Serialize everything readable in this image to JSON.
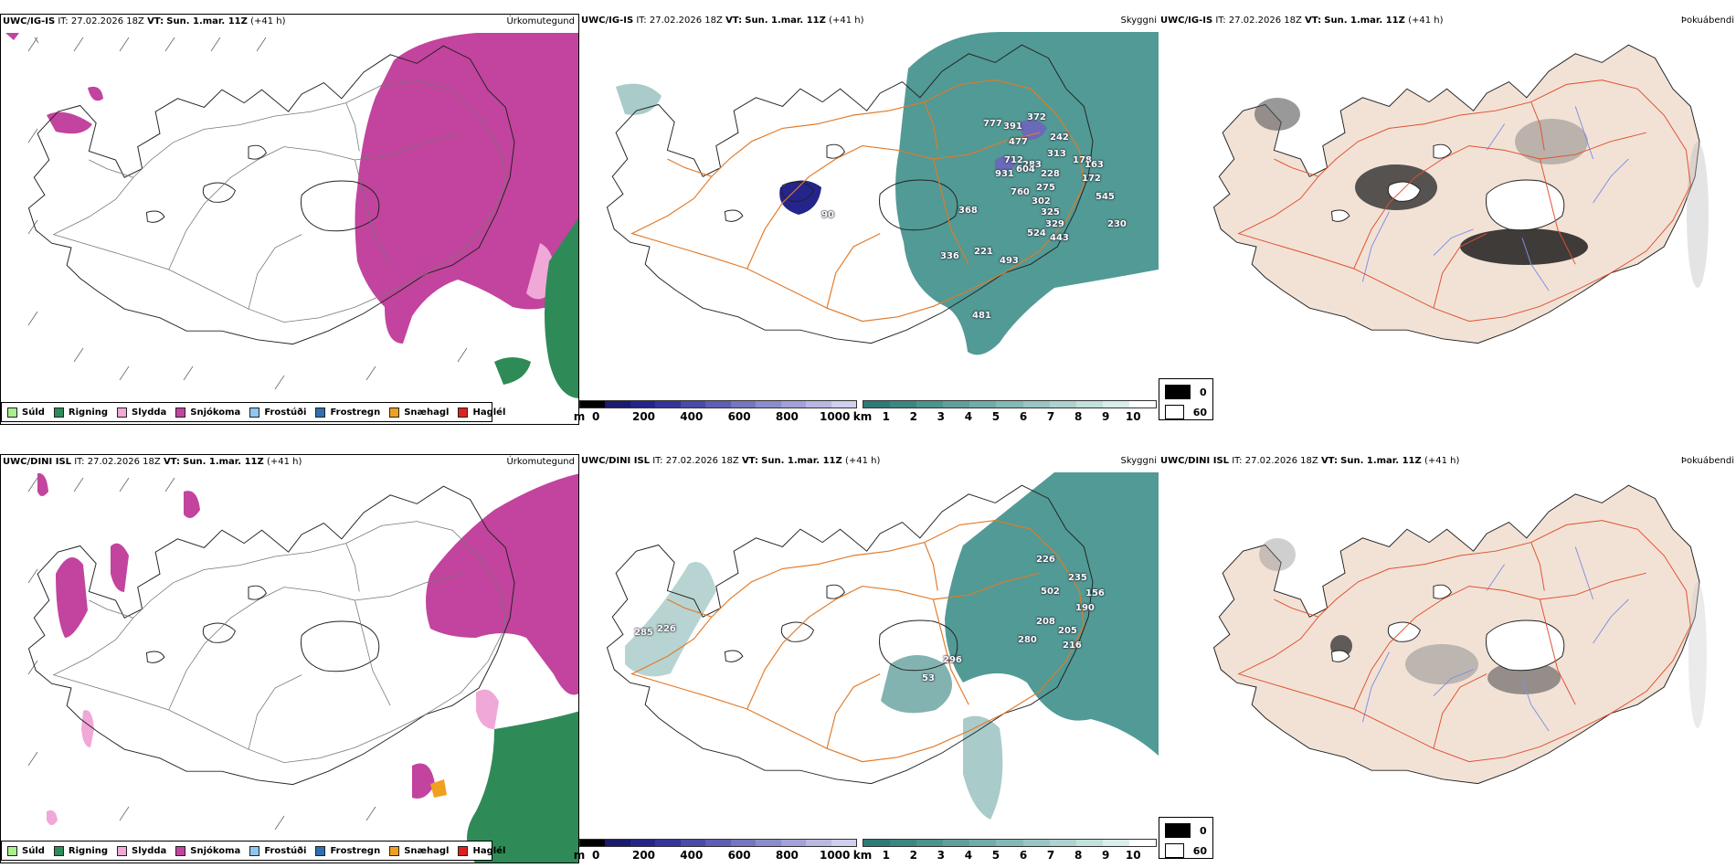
{
  "rows": [
    {
      "model": "UWC/IG-IS",
      "it_label": "IT:",
      "it_value": "27.02.2026 18Z",
      "vt_label": "VT:",
      "vt_value": "Sun. 1.mar. 11Z",
      "lead": "(+41 h)",
      "peaks": [
        {
          "text": "777"
        },
        {
          "text": "391"
        },
        {
          "text": "372"
        },
        {
          "text": "242"
        },
        {
          "text": "477"
        },
        {
          "text": "712"
        },
        {
          "text": "283"
        },
        {
          "text": "313"
        },
        {
          "text": "931"
        },
        {
          "text": "604"
        },
        {
          "text": "228"
        },
        {
          "text": "178"
        },
        {
          "text": "760"
        },
        {
          "text": "275"
        },
        {
          "text": "172"
        },
        {
          "text": "302"
        },
        {
          "text": "545"
        },
        {
          "text": "325"
        },
        {
          "text": "368"
        },
        {
          "text": "329"
        },
        {
          "text": "524"
        },
        {
          "text": "443"
        },
        {
          "text": "221"
        },
        {
          "text": "336"
        },
        {
          "text": "493"
        },
        {
          "text": "481"
        },
        {
          "text": "90"
        },
        {
          "text": "230"
        },
        {
          "text": "163"
        }
      ]
    },
    {
      "model": "UWC/DINI ISL",
      "it_label": "IT:",
      "it_value": "27.02.2026 18Z",
      "vt_label": "VT:",
      "vt_value": "Sun. 1.mar. 11Z",
      "lead": "(+41 h)",
      "peaks": [
        {
          "text": "226"
        },
        {
          "text": "235"
        },
        {
          "text": "502"
        },
        {
          "text": "156"
        },
        {
          "text": "190"
        },
        {
          "text": "208"
        },
        {
          "text": "205"
        },
        {
          "text": "280"
        },
        {
          "text": "216"
        },
        {
          "text": "296"
        },
        {
          "text": "53"
        },
        {
          "text": "285"
        },
        {
          "text": "226"
        }
      ]
    }
  ],
  "panel_titles": {
    "precip": "Úrkomutegund",
    "cloud": "Skyggni",
    "fog": "Þokuábendi"
  },
  "precip_legend": [
    {
      "label": "Súld",
      "color": "#a8f08c"
    },
    {
      "label": "Rigning",
      "color": "#2e8b57"
    },
    {
      "label": "Slydda",
      "color": "#f0a8d8"
    },
    {
      "label": "Snjókoma",
      "color": "#c2449e"
    },
    {
      "label": "Frostúði",
      "color": "#8ec6f0"
    },
    {
      "label": "Frostregn",
      "color": "#2f6fb0"
    },
    {
      "label": "Snæhagl",
      "color": "#f0a020"
    },
    {
      "label": "Haglél",
      "color": "#e02020"
    }
  ],
  "height_bar": {
    "unit": "m",
    "ticks": [
      "0",
      "200",
      "400",
      "600",
      "800",
      "1000"
    ],
    "colors": [
      "#000000",
      "#1a1a6e",
      "#24248a",
      "#34349c",
      "#4a4aa8",
      "#5e5eb4",
      "#7676c0",
      "#8c8ccc",
      "#a2a2d8",
      "#b8b8e2",
      "#cfcfee"
    ]
  },
  "visibility_bar": {
    "unit": "km",
    "ticks": [
      "1",
      "2",
      "3",
      "4",
      "5",
      "6",
      "7",
      "8",
      "9",
      "10"
    ],
    "colors": [
      "#2c7b76",
      "#3b8782",
      "#4d938e",
      "#60a09b",
      "#72aca8",
      "#85b9b5",
      "#99c6c2",
      "#add3d0",
      "#c2e0de",
      "#d8edec",
      "#ffffff"
    ]
  },
  "fog_legend": [
    {
      "value": "0",
      "color": "#000000"
    },
    {
      "value": "60",
      "color": "#ffffff"
    }
  ],
  "colors": {
    "snow": "#c2449e",
    "sleet": "#f0a8d8",
    "rain": "#2e8b57",
    "drizzle": "#a8f08c",
    "cloud": "#3f8f8a",
    "land_fog": "#f2e2d6",
    "roads": "#e07a2a",
    "roads_fog": "#e05030",
    "rivers": "#8090e0"
  }
}
